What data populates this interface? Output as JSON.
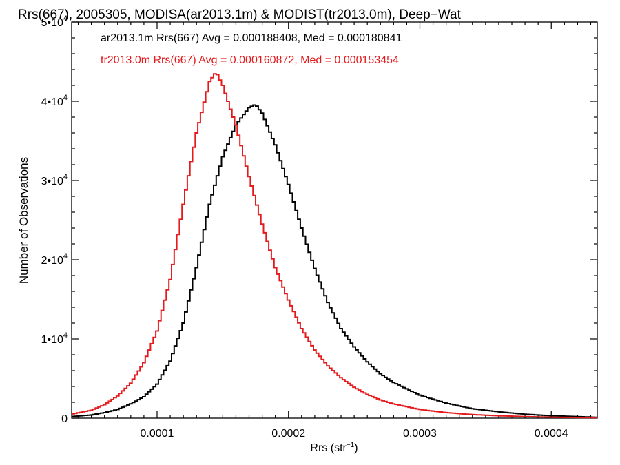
{
  "chart_data": {
    "type": "line",
    "title": "Rrs(667), 2005305, MODISA(ar2013.1m) & MODIST(tr2013.0m), Deep−Wat",
    "xlabel": "Rrs (str",
    "xlabel_sup": "−1",
    "xlabel_end": ")",
    "ylabel": "Number of Observations",
    "xlim": [
      3.5e-05,
      0.000435
    ],
    "ylim": [
      0,
      50000
    ],
    "x_ticks": [
      {
        "value": 0.0001,
        "label": "0.0001"
      },
      {
        "value": 0.0002,
        "label": "0.0002"
      },
      {
        "value": 0.0003,
        "label": "0.0003"
      },
      {
        "value": 0.0004,
        "label": "0.0004"
      }
    ],
    "y_ticks": [
      {
        "value": 0,
        "mant": "0",
        "exp": ""
      },
      {
        "value": 10000,
        "mant": "1•10",
        "exp": "4"
      },
      {
        "value": 20000,
        "mant": "2•10",
        "exp": "4"
      },
      {
        "value": 30000,
        "mant": "3•10",
        "exp": "4"
      },
      {
        "value": 40000,
        "mant": "4•10",
        "exp": "4"
      },
      {
        "value": 50000,
        "mant": "5•10",
        "exp": "4"
      }
    ],
    "legend_placement": "top-left",
    "series": [
      {
        "name": "ar2013.1m Rrs(667) Avg = 0.000188408, Med = 0.000180841",
        "color": "#000000",
        "x": [
          3.5e-05,
          5e-05,
          6e-05,
          7e-05,
          8e-05,
          9e-05,
          0.0001,
          0.00011,
          0.00012,
          0.00013,
          0.00014,
          0.00015,
          0.00016,
          0.00017,
          0.000175,
          0.00018,
          0.00019,
          0.0002,
          0.00021,
          0.00022,
          0.00023,
          0.00024,
          0.00025,
          0.00026,
          0.00027,
          0.00028,
          0.0003,
          0.00032,
          0.00034,
          0.00036,
          0.00038,
          0.0004,
          0.00042,
          0.000435
        ],
        "y": [
          200,
          400,
          700,
          1100,
          1800,
          2700,
          4300,
          7200,
          12000,
          19000,
          27000,
          33000,
          37000,
          39200,
          39600,
          38500,
          34500,
          29500,
          24000,
          18900,
          14600,
          11300,
          9000,
          7100,
          5600,
          4500,
          2900,
          1900,
          1200,
          800,
          500,
          300,
          200,
          100
        ]
      },
      {
        "name": "tr2013.0m Rrs(667) Avg = 0.000160872, Med = 0.000153454",
        "color": "#e41a1c",
        "x": [
          3.5e-05,
          5e-05,
          6e-05,
          7e-05,
          8e-05,
          9e-05,
          0.0001,
          0.00011,
          0.00012,
          0.00013,
          0.00014,
          0.000145,
          0.00015,
          0.00016,
          0.00017,
          0.00018,
          0.00019,
          0.0002,
          0.00021,
          0.00022,
          0.00023,
          0.00024,
          0.00025,
          0.00026,
          0.00027,
          0.00028,
          0.0003,
          0.00032,
          0.00034,
          0.00036,
          0.00038,
          0.0004,
          0.00042,
          0.000435
        ],
        "y": [
          500,
          1000,
          1700,
          2800,
          4400,
          7000,
          11000,
          17500,
          27000,
          36000,
          42500,
          43700,
          42000,
          37000,
          30500,
          24500,
          19000,
          14900,
          11300,
          8600,
          6600,
          5100,
          3900,
          3000,
          2300,
          1800,
          1100,
          700,
          450,
          300,
          200,
          120,
          80,
          50
        ]
      }
    ]
  }
}
